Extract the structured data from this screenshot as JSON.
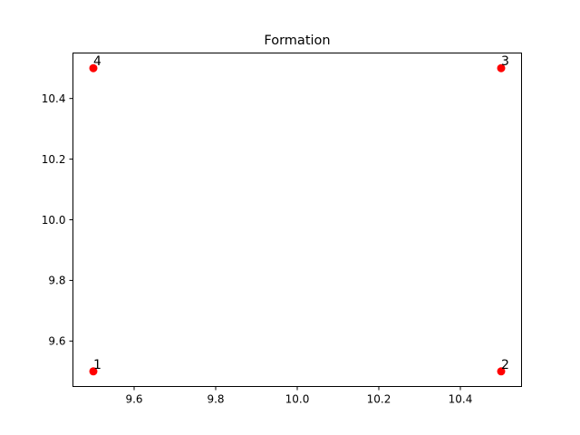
{
  "chart_data": {
    "type": "scatter",
    "title": "Formation",
    "xlabel": "",
    "ylabel": "",
    "xlim": [
      9.45,
      10.55
    ],
    "ylim": [
      9.45,
      10.55
    ],
    "xticks": [
      9.6,
      9.8,
      10.0,
      10.2,
      10.4
    ],
    "xtick_labels": [
      "9.6",
      "9.8",
      "10.0",
      "10.2",
      "10.4"
    ],
    "yticks": [
      9.6,
      9.8,
      10.0,
      10.2,
      10.4
    ],
    "ytick_labels": [
      "9.6",
      "9.8",
      "10.0",
      "10.2",
      "10.4"
    ],
    "grid": false,
    "marker_color": "#ff0000",
    "points": [
      {
        "x": 9.5,
        "y": 9.5,
        "label": "1"
      },
      {
        "x": 10.5,
        "y": 9.5,
        "label": "2"
      },
      {
        "x": 10.5,
        "y": 10.5,
        "label": "3"
      },
      {
        "x": 9.5,
        "y": 10.5,
        "label": "4"
      }
    ]
  }
}
